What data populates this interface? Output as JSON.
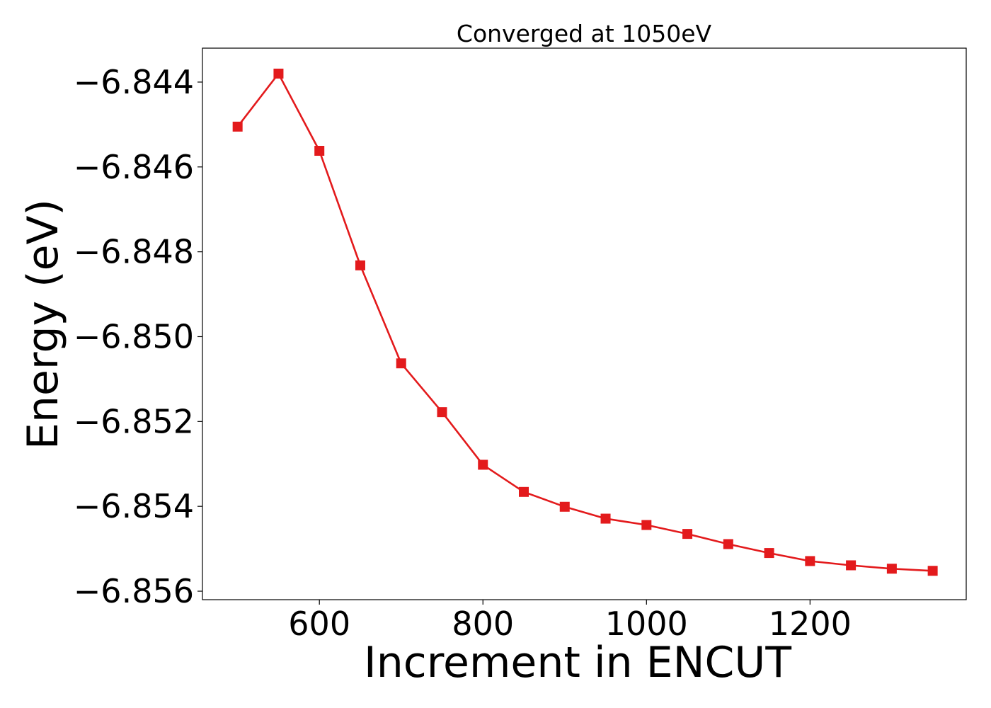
{
  "chart_data": {
    "type": "line",
    "title": "Converged at 1050eV",
    "xlabel": "Increment in ENCUT",
    "ylabel": "Energy (eV)",
    "xlim": [
      457,
      1391
    ],
    "ylim": [
      -6.8562,
      -6.8432
    ],
    "xticks": [
      600,
      800,
      1000,
      1200
    ],
    "xtick_labels": [
      "600",
      "800",
      "1000",
      "1200"
    ],
    "yticks": [
      -6.844,
      -6.846,
      -6.848,
      -6.85,
      -6.852,
      -6.854,
      -6.856
    ],
    "ytick_labels": [
      "−6.844",
      "−6.846",
      "−6.848",
      "−6.850",
      "−6.852",
      "−6.854",
      "−6.856"
    ],
    "grid": false,
    "legend": "none",
    "series": [
      {
        "color": "#e31a1c",
        "marker": "square",
        "x": [
          500,
          550,
          600,
          650,
          700,
          750,
          800,
          850,
          900,
          950,
          1000,
          1050,
          1100,
          1150,
          1200,
          1250,
          1300,
          1350
        ],
        "y": [
          -6.84505,
          -6.8438,
          -6.84562,
          -6.84832,
          -6.85063,
          -6.85178,
          -6.85302,
          -6.85366,
          -6.85401,
          -6.85429,
          -6.85444,
          -6.85465,
          -6.85489,
          -6.8551,
          -6.85529,
          -6.85539,
          -6.85547,
          -6.85552
        ]
      }
    ]
  }
}
